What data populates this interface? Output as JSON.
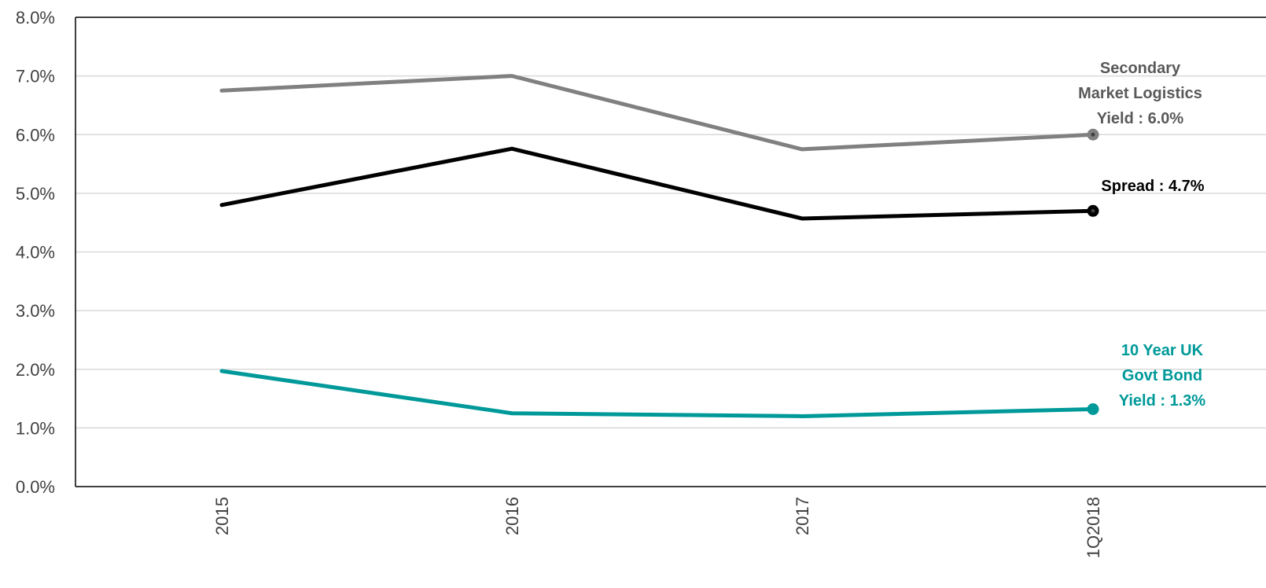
{
  "chart_data": {
    "type": "line",
    "categories": [
      "2015",
      "2016",
      "2017",
      "1Q2018"
    ],
    "ylim": [
      0,
      8
    ],
    "yticks": [
      "0.0%",
      "1.0%",
      "2.0%",
      "3.0%",
      "4.0%",
      "5.0%",
      "6.0%",
      "7.0%",
      "8.0%"
    ],
    "yticks_values": [
      0,
      1,
      2,
      3,
      4,
      5,
      6,
      7,
      8
    ],
    "grid": "horizontal",
    "series": [
      {
        "key": "secondary_yield",
        "values": [
          6.75,
          7.0,
          5.75,
          6.0
        ],
        "color": "#808080",
        "label_lines": [
          "Secondary",
          "Market Logistics",
          "Yield : 6.0%"
        ]
      },
      {
        "key": "spread",
        "values": [
          4.8,
          5.76,
          4.57,
          4.7
        ],
        "color": "#000000",
        "label_lines": [
          "Spread : 4.7%"
        ]
      },
      {
        "key": "gilt_yield",
        "values": [
          1.97,
          1.25,
          1.2,
          1.32
        ],
        "color": "#009999",
        "label_lines": [
          "10 Year UK",
          "Govt Bond",
          "Yield : 1.3%"
        ]
      }
    ]
  },
  "colors": {
    "gridline": "#d9d9d9",
    "axis": "#000000",
    "tick_text": "#404040"
  }
}
